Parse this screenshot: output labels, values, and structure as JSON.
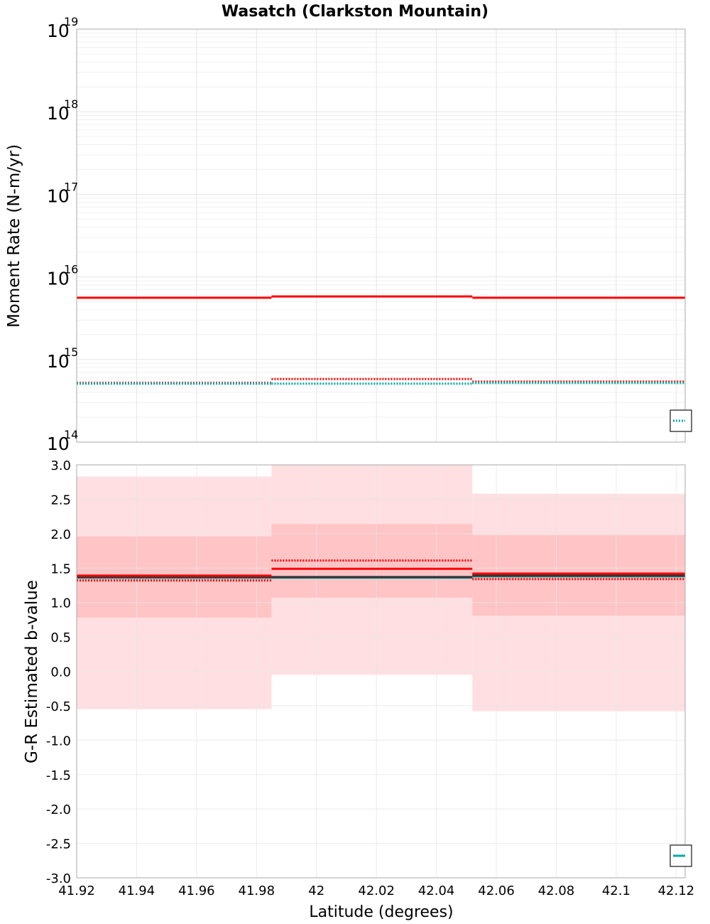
{
  "title": "Wasatch (Clarkston Mountain)",
  "xlabel": "Latitude (degrees)",
  "xlim": [
    41.92,
    42.123
  ],
  "x_ticks": [
    41.92,
    41.94,
    41.96,
    41.98,
    42.0,
    42.02,
    42.04,
    42.06,
    42.08,
    42.1,
    42.12
  ],
  "x_tick_labels": [
    "41.92",
    "41.94",
    "41.96",
    "41.98",
    "42",
    "42.02",
    "42.04",
    "42.06",
    "42.08",
    "42.1",
    "42.12"
  ],
  "colors": {
    "red": "#ff0000",
    "teal": "#00aaaa",
    "dark_line": "#333333",
    "light_band": "#ffdfe2",
    "dark_band": "#ffc4c6",
    "grid": "#e6e6e6",
    "frame": "#aaaaaa"
  },
  "chart_data": [
    {
      "type": "line",
      "panel": "moment_rate",
      "ylabel": "Moment Rate (N-m/yr)",
      "yscale": "log",
      "ylim_exponent": [
        14,
        19
      ],
      "tick_base": "10",
      "tick_exponents": [
        "14",
        "15",
        "16",
        "17",
        "18",
        "19"
      ],
      "segment_edges": [
        41.92,
        41.985,
        42.052,
        42.123
      ],
      "series": [
        {
          "name": "solid-red",
          "style": "solid",
          "color": "red",
          "values": [
            5600000000000000.0,
            5800000000000000.0,
            5600000000000000.0
          ]
        },
        {
          "name": "dotted-red",
          "style": "dotted",
          "color": "red",
          "values": [
            520000000000000.0,
            580000000000000.0,
            540000000000000.0
          ]
        },
        {
          "name": "dotted-teal",
          "style": "dotted",
          "color": "teal",
          "values": [
            510000000000000.0,
            510000000000000.0,
            520000000000000.0
          ]
        }
      ],
      "legend": {
        "placement": "bottom-right",
        "entries": [
          {
            "style": "dotted",
            "color": "teal"
          }
        ]
      }
    },
    {
      "type": "line",
      "panel": "b_value",
      "ylabel": "G-R Estimated b-value",
      "ylim": [
        -3.0,
        3.0
      ],
      "y_ticks": [
        -3.0,
        -2.5,
        -2.0,
        -1.5,
        -1.0,
        -0.5,
        0.0,
        0.5,
        1.0,
        1.5,
        2.0,
        2.5,
        3.0
      ],
      "y_tick_labels": [
        "-3.0",
        "-2.5",
        "-2.0",
        "-1.5",
        "-1.0",
        "-0.5",
        "0.0",
        "0.5",
        "1.0",
        "1.5",
        "2.0",
        "2.5",
        "3.0"
      ],
      "segment_edges": [
        41.92,
        41.985,
        42.052,
        42.123
      ],
      "bands": [
        {
          "name": "outer-band",
          "color": "light_band",
          "low": [
            -0.55,
            -0.05,
            -0.58
          ],
          "high": [
            2.83,
            3.0,
            2.58
          ]
        },
        {
          "name": "inner-band",
          "color": "dark_band",
          "low": [
            0.78,
            1.07,
            0.81
          ],
          "high": [
            1.96,
            2.14,
            1.98
          ]
        }
      ],
      "series": [
        {
          "name": "teal-line",
          "style": "solid",
          "color": "teal",
          "values": [
            1.36,
            1.36,
            1.38
          ]
        },
        {
          "name": "dark-line",
          "style": "solid",
          "color": "dark_line",
          "values": [
            1.37,
            1.37,
            1.39
          ]
        },
        {
          "name": "solid-red",
          "style": "solid",
          "color": "red",
          "values": [
            1.39,
            1.49,
            1.42
          ]
        },
        {
          "name": "dotted-red",
          "style": "dotted",
          "color": "red",
          "values": [
            1.32,
            1.61,
            1.34
          ]
        }
      ],
      "legend": {
        "placement": "bottom-right",
        "entries": [
          {
            "style": "solid",
            "color": "teal"
          }
        ]
      }
    }
  ]
}
